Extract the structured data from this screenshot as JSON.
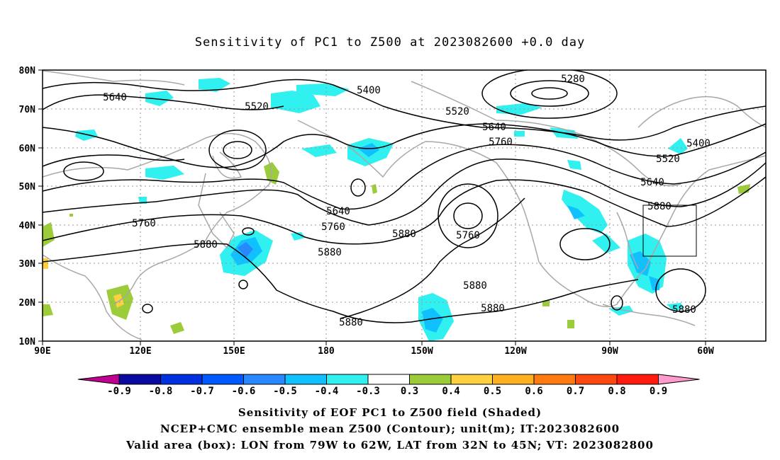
{
  "title": "Sensitivity of PC1 to Z500 at 2023082600 +0.0 day",
  "axes": {
    "lat_labels": [
      "80N",
      "70N",
      "60N",
      "50N",
      "40N",
      "30N",
      "20N",
      "10N"
    ],
    "lon_labels": [
      "90E",
      "120E",
      "150E",
      "180",
      "150W",
      "120W",
      "90W",
      "60W"
    ]
  },
  "contour_labels": [
    "5280",
    "5400",
    "5400",
    "5520",
    "5520",
    "5520",
    "5640",
    "5640",
    "5640",
    "5640",
    "5760",
    "5760",
    "5760",
    "5760",
    "5880",
    "5880",
    "5880",
    "5880",
    "5880",
    "5880",
    "5880",
    "5880"
  ],
  "colorbar": {
    "labels": [
      "-0.9",
      "-0.8",
      "-0.7",
      "-0.6",
      "-0.5",
      "-0.4",
      "-0.3",
      "0.3",
      "0.4",
      "0.5",
      "0.6",
      "0.7",
      "0.8",
      "0.9"
    ],
    "colors": [
      "#c00090",
      "#0a0aa0",
      "#0030e0",
      "#0058ff",
      "#2a88ff",
      "#10c0ff",
      "#30f0f0",
      "#ffffff",
      "#9ccc3a",
      "#ffd040",
      "#ffb020",
      "#ff7a10",
      "#ff4810",
      "#ff1a10",
      "#ff9acc"
    ]
  },
  "captions": {
    "line1": "Sensitivity of EOF PC1 to Z500 field (Shaded)",
    "line2": "NCEP+CMC ensemble mean Z500 (Contour); unit(m); IT:2023082600",
    "line3": "Valid area (box): LON from 79W to 62W, LAT from 32N to 45N; VT: 2023082800"
  }
}
